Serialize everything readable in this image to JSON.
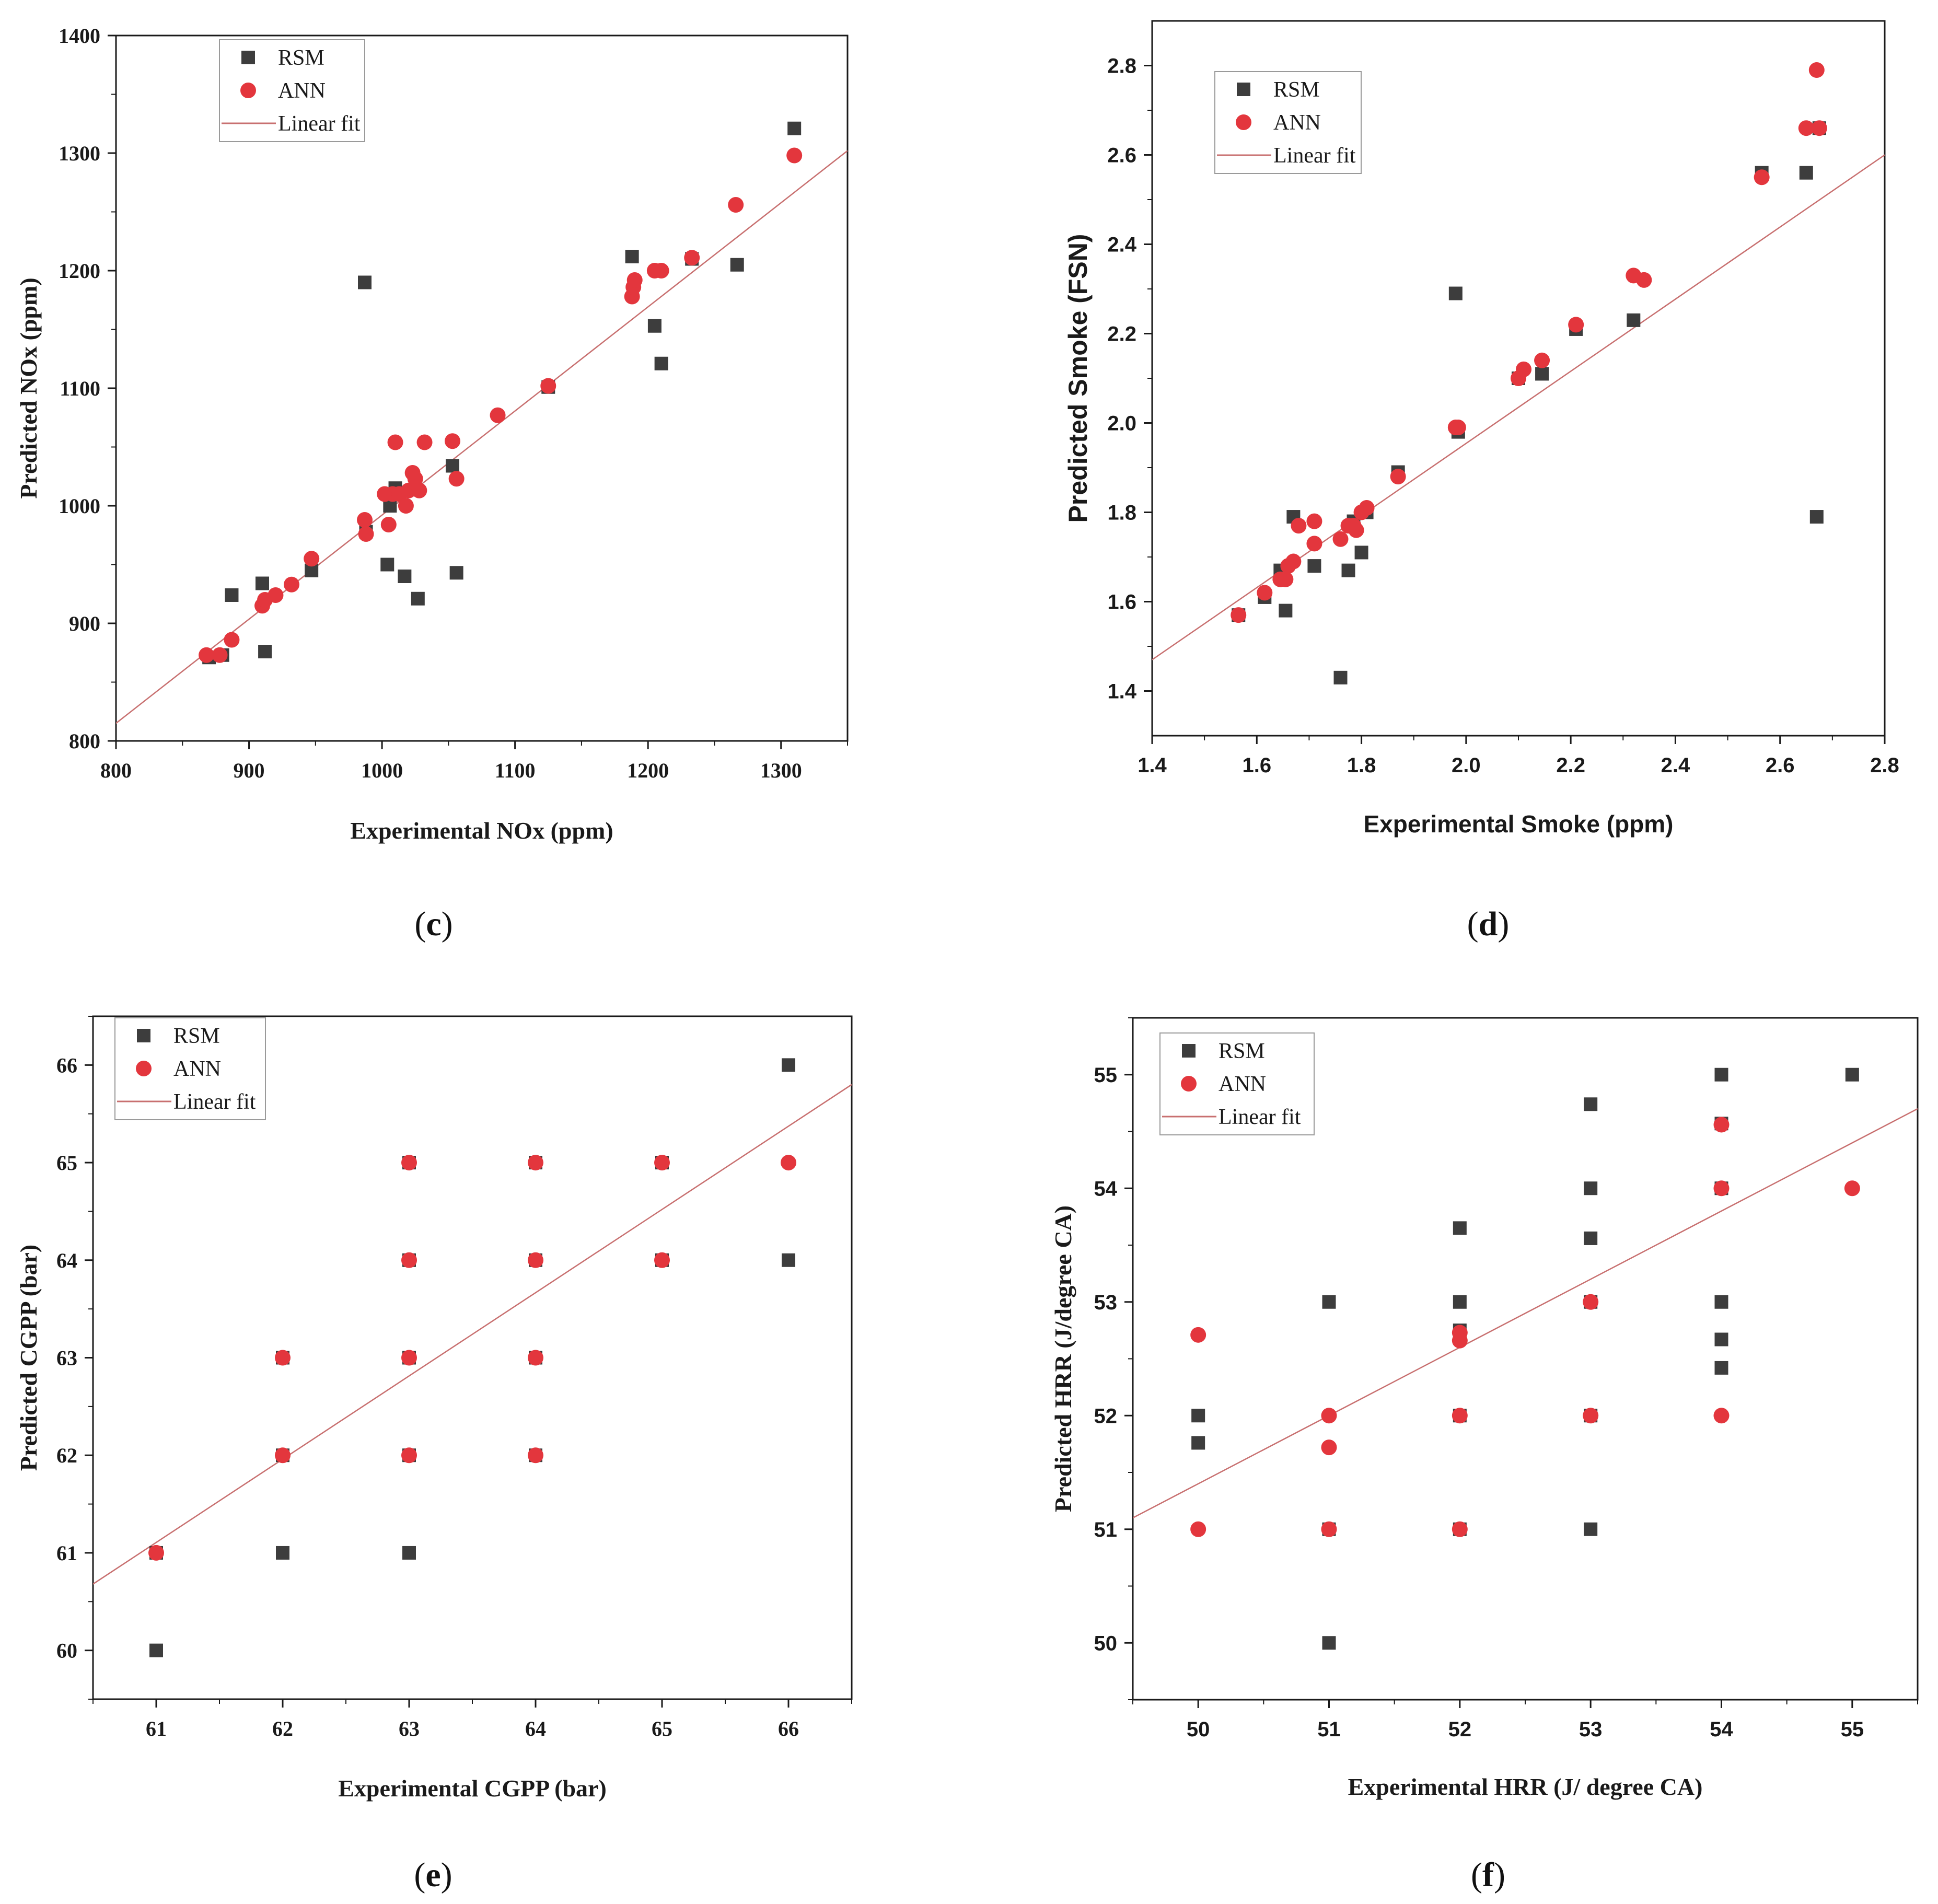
{
  "colors": {
    "rsm": "#3d3d3d",
    "ann": "#e3363d",
    "fit": "#c87070",
    "axis": "#1a1a1a"
  },
  "chart_data": [
    {
      "id": "c",
      "caption": "c",
      "type": "scatter",
      "xlabel": "Experimental NOx (ppm)",
      "ylabel": "Predicted NOx (ppm)",
      "xlim": [
        800,
        1350
      ],
      "ylim": [
        800,
        1400
      ],
      "xticks": [
        800,
        900,
        1000,
        1100,
        1200,
        1300
      ],
      "yticks": [
        800,
        900,
        1000,
        1100,
        1200,
        1300,
        1400
      ],
      "legend": {
        "position": "top-left",
        "rsm": "RSM",
        "ann": "ANN",
        "fit": "Linear fit"
      },
      "fit": [
        [
          800,
          815
        ],
        [
          1350,
          1302
        ]
      ],
      "series": [
        {
          "name": "RSM",
          "marker": "square",
          "points": [
            [
              870,
              871
            ],
            [
              880,
              873
            ],
            [
              887,
              924
            ],
            [
              910,
              934
            ],
            [
              912,
              876
            ],
            [
              947,
              945
            ],
            [
              987,
              1190
            ],
            [
              988,
              978
            ],
            [
              1004,
              950
            ],
            [
              1006,
              1000
            ],
            [
              1010,
              1015
            ],
            [
              1017,
              940
            ],
            [
              1027,
              921
            ],
            [
              1053,
              1034
            ],
            [
              1056,
              943
            ],
            [
              1125,
              1101
            ],
            [
              1188,
              1212
            ],
            [
              1205,
              1153
            ],
            [
              1210,
              1121
            ],
            [
              1233,
              1210
            ],
            [
              1267,
              1205
            ],
            [
              1310,
              1321
            ]
          ]
        },
        {
          "name": "ANN",
          "marker": "circle",
          "points": [
            [
              868,
              873
            ],
            [
              878,
              873
            ],
            [
              887,
              886
            ],
            [
              910,
              915
            ],
            [
              912,
              920
            ],
            [
              920,
              924
            ],
            [
              932,
              933
            ],
            [
              947,
              955
            ],
            [
              987,
              988
            ],
            [
              988,
              976
            ],
            [
              1002,
              1010
            ],
            [
              1005,
              984
            ],
            [
              1008,
              1010
            ],
            [
              1010,
              1054
            ],
            [
              1013,
              1010
            ],
            [
              1018,
              1000
            ],
            [
              1020,
              1013
            ],
            [
              1023,
              1028
            ],
            [
              1025,
              1023
            ],
            [
              1028,
              1013
            ],
            [
              1032,
              1054
            ],
            [
              1053,
              1055
            ],
            [
              1056,
              1023
            ],
            [
              1087,
              1077
            ],
            [
              1125,
              1102
            ],
            [
              1188,
              1178
            ],
            [
              1189,
              1186
            ],
            [
              1190,
              1192
            ],
            [
              1205,
              1200
            ],
            [
              1210,
              1200
            ],
            [
              1233,
              1211
            ],
            [
              1266,
              1256
            ],
            [
              1310,
              1298
            ]
          ]
        }
      ]
    },
    {
      "id": "d",
      "caption": "d",
      "type": "scatter",
      "xlabel": "Experimental Smoke (ppm)",
      "ylabel": "Predicted Smoke (FSN)",
      "xlim": [
        1.4,
        2.8
      ],
      "ylim": [
        1.3,
        2.9
      ],
      "xticks": [
        "1.4",
        "1.6",
        "1.8",
        "2.0",
        "2.2",
        "2.4",
        "2.6",
        "2.8"
      ],
      "yticks": [
        "1.4",
        "1.6",
        "1.8",
        "2.0",
        "2.2",
        "2.4",
        "2.6",
        "2.8"
      ],
      "legend": {
        "position": "top-left",
        "rsm": "RSM",
        "ann": "ANN",
        "fit": "Linear fit"
      },
      "fit": [
        [
          1.4,
          1.47
        ],
        [
          2.8,
          2.6
        ]
      ],
      "series": [
        {
          "name": "RSM",
          "marker": "square",
          "points": [
            [
              1.565,
              1.57
            ],
            [
              1.615,
              1.61
            ],
            [
              1.645,
              1.67
            ],
            [
              1.655,
              1.58
            ],
            [
              1.67,
              1.79
            ],
            [
              1.71,
              1.68
            ],
            [
              1.76,
              1.43
            ],
            [
              1.775,
              1.67
            ],
            [
              1.785,
              1.78
            ],
            [
              1.8,
              1.71
            ],
            [
              1.81,
              1.8
            ],
            [
              1.87,
              1.89
            ],
            [
              1.98,
              2.29
            ],
            [
              1.985,
              1.98
            ],
            [
              2.1,
              2.1
            ],
            [
              2.145,
              2.11
            ],
            [
              2.21,
              2.21
            ],
            [
              2.32,
              2.23
            ],
            [
              2.565,
              2.56
            ],
            [
              2.65,
              2.56
            ],
            [
              2.67,
              1.79
            ],
            [
              2.675,
              2.66
            ]
          ]
        },
        {
          "name": "ANN",
          "marker": "circle",
          "points": [
            [
              1.565,
              1.57
            ],
            [
              1.615,
              1.62
            ],
            [
              1.645,
              1.65
            ],
            [
              1.655,
              1.65
            ],
            [
              1.66,
              1.68
            ],
            [
              1.67,
              1.69
            ],
            [
              1.68,
              1.77
            ],
            [
              1.71,
              1.73
            ],
            [
              1.71,
              1.78
            ],
            [
              1.76,
              1.74
            ],
            [
              1.775,
              1.77
            ],
            [
              1.785,
              1.77
            ],
            [
              1.79,
              1.76
            ],
            [
              1.8,
              1.8
            ],
            [
              1.81,
              1.81
            ],
            [
              1.87,
              1.88
            ],
            [
              1.98,
              1.99
            ],
            [
              1.985,
              1.99
            ],
            [
              2.1,
              2.1
            ],
            [
              2.11,
              2.12
            ],
            [
              2.145,
              2.14
            ],
            [
              2.21,
              2.22
            ],
            [
              2.32,
              2.33
            ],
            [
              2.34,
              2.32
            ],
            [
              2.565,
              2.55
            ],
            [
              2.65,
              2.66
            ],
            [
              2.67,
              2.79
            ],
            [
              2.675,
              2.66
            ]
          ]
        }
      ]
    },
    {
      "id": "e",
      "caption": "e",
      "type": "scatter",
      "xlabel": "Experimental CGPP (bar)",
      "ylabel": "Predicted CGPP (bar)",
      "xlim": [
        60.5,
        66.5
      ],
      "ylim": [
        59.5,
        66.5
      ],
      "xticks": [
        61,
        62,
        63,
        64,
        65,
        66
      ],
      "yticks": [
        60,
        61,
        62,
        63,
        64,
        65,
        66
      ],
      "legend": {
        "position": "top-left",
        "rsm": "RSM",
        "ann": "ANN",
        "fit": "Linear fit"
      },
      "fit": [
        [
          60.5,
          60.68
        ],
        [
          66.5,
          65.8
        ]
      ],
      "series": [
        {
          "name": "RSM",
          "marker": "square",
          "points": [
            [
              61,
              61
            ],
            [
              61,
              60
            ],
            [
              62,
              63
            ],
            [
              62,
              62
            ],
            [
              62,
              61
            ],
            [
              63,
              65
            ],
            [
              63,
              64
            ],
            [
              63,
              63
            ],
            [
              63,
              62
            ],
            [
              63,
              61
            ],
            [
              64,
              65
            ],
            [
              64,
              64
            ],
            [
              64,
              63
            ],
            [
              64,
              62
            ],
            [
              65,
              65
            ],
            [
              65,
              64
            ],
            [
              66,
              66
            ],
            [
              66,
              64
            ]
          ]
        },
        {
          "name": "ANN",
          "marker": "circle",
          "points": [
            [
              61,
              61
            ],
            [
              62,
              63
            ],
            [
              62,
              62
            ],
            [
              63,
              65
            ],
            [
              63,
              64
            ],
            [
              63,
              63
            ],
            [
              63,
              62
            ],
            [
              64,
              65
            ],
            [
              64,
              64
            ],
            [
              64,
              63
            ],
            [
              64,
              62
            ],
            [
              65,
              65
            ],
            [
              65,
              64
            ],
            [
              66,
              65
            ]
          ]
        }
      ]
    },
    {
      "id": "f",
      "caption": "f",
      "type": "scatter",
      "xlabel": "Experimental HRR (J/ degree CA)",
      "ylabel": "Predicted HRR (J/degree CA)",
      "xlim": [
        49.5,
        55.5
      ],
      "ylim": [
        49.5,
        55.5
      ],
      "xticks": [
        50,
        51,
        52,
        53,
        54,
        55
      ],
      "yticks": [
        50,
        51,
        52,
        53,
        54,
        55
      ],
      "legend": {
        "position": "top-left",
        "rsm": "RSM",
        "ann": "ANN",
        "fit": "Linear fit"
      },
      "fit": [
        [
          49.5,
          51.1
        ],
        [
          55.5,
          54.7
        ]
      ],
      "series": [
        {
          "name": "RSM",
          "marker": "square",
          "points": [
            [
              50,
              52
            ],
            [
              50,
              51.76
            ],
            [
              51,
              53
            ],
            [
              51,
              51
            ],
            [
              51,
              50
            ],
            [
              52,
              53.65
            ],
            [
              52,
              53
            ],
            [
              52,
              52.75
            ],
            [
              52,
              52
            ],
            [
              52,
              51
            ],
            [
              53,
              54.74
            ],
            [
              53,
              54
            ],
            [
              53,
              53.56
            ],
            [
              53,
              53
            ],
            [
              53,
              52
            ],
            [
              53,
              51
            ],
            [
              54,
              55
            ],
            [
              54,
              54.57
            ],
            [
              54,
              54
            ],
            [
              54,
              53
            ],
            [
              54,
              52.67
            ],
            [
              54,
              52.42
            ],
            [
              55,
              55
            ]
          ]
        },
        {
          "name": "ANN",
          "marker": "circle",
          "points": [
            [
              50,
              52.71
            ],
            [
              50,
              51
            ],
            [
              51,
              52
            ],
            [
              51,
              51.72
            ],
            [
              51,
              51
            ],
            [
              52,
              52.73
            ],
            [
              52,
              52.66
            ],
            [
              52,
              52
            ],
            [
              52,
              51
            ],
            [
              53,
              53
            ],
            [
              53,
              52
            ],
            [
              54,
              54.56
            ],
            [
              54,
              54
            ],
            [
              54,
              52
            ],
            [
              55,
              54
            ]
          ]
        }
      ]
    }
  ]
}
